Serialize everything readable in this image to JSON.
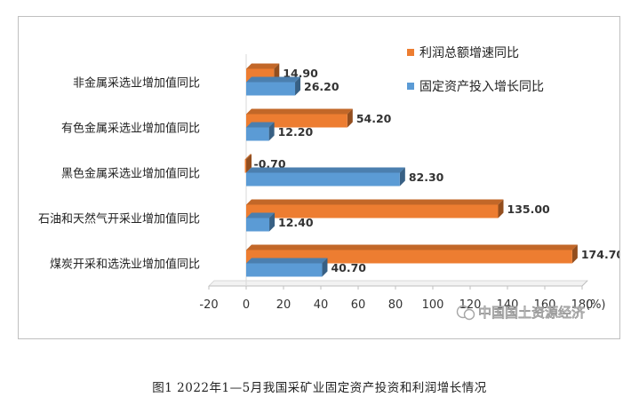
{
  "chart_data": {
    "type": "bar",
    "orientation": "horizontal",
    "categories": [
      "非金属采选业增加值同比",
      "有色金属采选业增加值同比",
      "黑色金属采选业增加值同比",
      "石油和天然气开采业增加值同比",
      "煤炭开采和选洗业增加值同比"
    ],
    "series": [
      {
        "name": "利润总额增速同比",
        "color": "#ED7D31",
        "values": [
          14.9,
          54.2,
          -0.7,
          135.0,
          174.7
        ],
        "labels": [
          "14.90",
          "54.20",
          "-0.70",
          "135.00",
          "174.70"
        ]
      },
      {
        "name": "固定资产投入增长同比",
        "color": "#5B9BD5",
        "values": [
          26.2,
          12.2,
          82.3,
          12.4,
          40.7
        ],
        "labels": [
          "26.20",
          "12.20",
          "82.30",
          "12.40",
          "40.70"
        ]
      }
    ],
    "xlim": [
      -20,
      180
    ],
    "xticks": [
      -20,
      0,
      20,
      40,
      60,
      80,
      100,
      120,
      140,
      160,
      180
    ],
    "xtick_labels": [
      "-20",
      "0",
      "20",
      "40",
      "60",
      "80",
      "100",
      "120",
      "140",
      "160",
      "180"
    ],
    "xunit": "(%)",
    "legend_position": "top-right",
    "grid": false
  },
  "watermark": {
    "text": "中国国土资源经济",
    "icon": "wechat-icon"
  },
  "caption": "图1  2022年1—5月我国采矿业固定资产投资和利润增长情况"
}
